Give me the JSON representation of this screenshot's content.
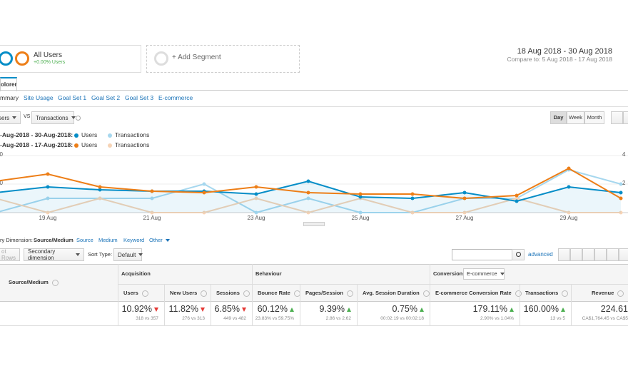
{
  "segments": {
    "all_users": "All Users",
    "all_users_change": "+0.00% Users",
    "add_segment": "+ Add Segment"
  },
  "date_range": {
    "current": "18 Aug 2018 - 30 Aug 2018",
    "compare": "Compare to: 5 Aug 2018 - 17 Aug 2018"
  },
  "tab": "olorer",
  "subtabs": [
    "mmary",
    "Site Usage",
    "Goal Set 1",
    "Goal Set 2",
    "Goal Set 3",
    "E-commerce"
  ],
  "metric_selector": {
    "metric1": "sers",
    "vs": "VS",
    "metric2": "Transactions"
  },
  "granularity": [
    "Day",
    "Week",
    "Month"
  ],
  "chart_data": {
    "type": "line",
    "categories": [
      null,
      "19 Aug",
      null,
      "21 Aug",
      null,
      "23 Aug",
      null,
      "25 Aug",
      null,
      "27 Aug",
      null,
      "29 Aug",
      null
    ],
    "ylim": [
      0,
      20.5
    ],
    "yticks": [
      10,
      20
    ],
    "y2lim": [
      0,
      4.1
    ],
    "y2ticks": [
      2,
      4
    ],
    "grid": true,
    "periods": [
      {
        "label": "-Aug-2018 - 30-Aug-2018:",
        "series": [
          {
            "name": "Users",
            "color": "#058dc7",
            "fill": true,
            "values": [
              7,
              9,
              8,
              7.5,
              7.5,
              6.5,
              11,
              5.5,
              5,
              7,
              4,
              9,
              7
            ]
          },
          {
            "name": "Transactions",
            "color": "#a6d7ee",
            "axis": "y2",
            "values": [
              0,
              1,
              1,
              1,
              2,
              0,
              1,
              0,
              0,
              1,
              1,
              3,
              2
            ]
          }
        ]
      },
      {
        "label": "-Aug-2018 - 17-Aug-2018:",
        "series": [
          {
            "name": "Users",
            "color": "#ed7e17",
            "values": [
              11,
              13.5,
              9,
              7.5,
              7,
              9,
              7,
              6.5,
              6.5,
              5,
              6,
              15.5,
              5
            ]
          },
          {
            "name": "Transactions",
            "color": "#f6d3b5",
            "axis": "y2",
            "values": [
              1,
              0,
              1,
              0,
              0,
              1,
              0,
              1,
              0,
              0,
              1,
              0,
              0
            ]
          }
        ]
      }
    ]
  },
  "dimension_bar": {
    "label": "ry Dimension:",
    "active": "Source/Medium",
    "options": [
      "Source",
      "Medium",
      "Keyword",
      "Other"
    ]
  },
  "toolbar": {
    "plot_rows": "ot Rows",
    "secondary": "Secondary dimension",
    "sort_label": "Sort Type:",
    "sort_value": "Default",
    "advanced": "advanced"
  },
  "table": {
    "first_header": "Source/Medium",
    "groups": [
      {
        "label": "Acquisition",
        "columns": [
          {
            "label": "Users",
            "value": "10.92%",
            "trend": "down",
            "detail": "318 vs 357"
          },
          {
            "label": "New Users",
            "value": "11.82%",
            "trend": "down",
            "detail": "276 vs 313"
          },
          {
            "label": "Sessions",
            "value": "6.85%",
            "trend": "down",
            "detail": "449 vs 482"
          }
        ]
      },
      {
        "label": "Behaviour",
        "columns": [
          {
            "label": "Bounce Rate",
            "value": "60.12%",
            "trend": "up",
            "detail": "23.83% vs 59.75%"
          },
          {
            "label": "Pages/Session",
            "value": "9.39%",
            "trend": "up",
            "detail": "2.86 vs 2.62"
          },
          {
            "label": "Avg. Session Duration",
            "value": "0.75%",
            "trend": "up",
            "detail": "00:02:19 vs 00:02:18"
          }
        ]
      },
      {
        "label": "Conversions",
        "select": "E-commerce",
        "columns": [
          {
            "label": "E-commerce Conversion Rate",
            "value": "179.11%",
            "trend": "up",
            "detail": "2.90% vs 1.04%"
          },
          {
            "label": "Transactions",
            "value": "160.00%",
            "trend": "up",
            "detail": "13 vs 5"
          },
          {
            "label": "Revenue",
            "value": "224.61",
            "trend": "none",
            "detail": "CA$1,764.45 vs CA$5"
          }
        ]
      }
    ]
  }
}
